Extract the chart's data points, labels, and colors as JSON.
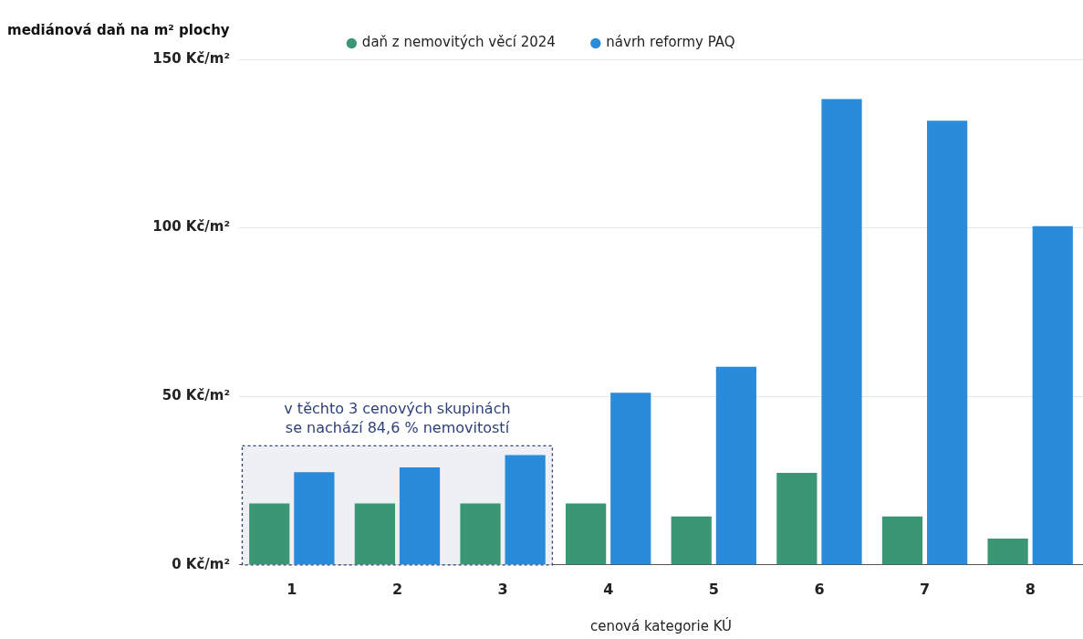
{
  "chart_data": {
    "type": "bar",
    "xlabel": "cenová kategorie KÚ",
    "ylabel": "mediánová daň na m² plochy",
    "categories": [
      "1",
      "2",
      "3",
      "4",
      "5",
      "6",
      "7",
      "8"
    ],
    "series": [
      {
        "name": "daň z nemovitých věcí 2024",
        "color": "#3a9673",
        "values": [
          18.2,
          18.2,
          18.2,
          18.2,
          14.4,
          27.3,
          14.4,
          7.8
        ]
      },
      {
        "name": "návrh reformy PAQ",
        "color": "#2b8bdb",
        "values": [
          27.5,
          28.9,
          32.6,
          51.1,
          58.8,
          138.2,
          131.8,
          100.5
        ]
      }
    ],
    "ylim": [
      0,
      150
    ],
    "yticks": [
      {
        "value": 0,
        "label": "0 Kč/m²"
      },
      {
        "value": 50,
        "label": "50 Kč/m²"
      },
      {
        "value": 100,
        "label": "100 Kč/m²"
      },
      {
        "value": 150,
        "label": "150 Kč/m²"
      }
    ],
    "grid": "y",
    "legend": "top",
    "bands": [
      {
        "axis": "x",
        "from": "1",
        "to": "3",
        "label": "v těchto 3 cenových skupinách\nse nachází 84,6 % nemovitostí",
        "color": "#eff0f6"
      }
    ]
  }
}
